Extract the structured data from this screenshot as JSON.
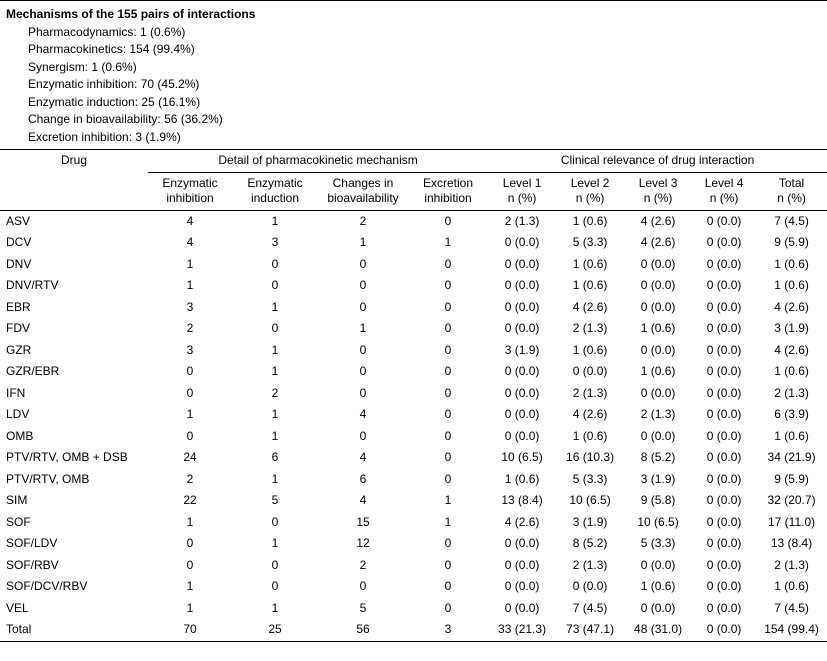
{
  "summary": {
    "title": "Mechanisms of the 155 pairs of interactions",
    "items": [
      "Pharmacodynamics: 1 (0.6%)",
      "Pharmacokinetics: 154 (99.4%)",
      "Synergism: 1 (0.6%)",
      "Enzymatic inhibition: 70 (45.2%)",
      "Enzymatic induction: 25 (16.1%)",
      "Change in bioavailability: 56 (36.2%)",
      "Excretion inhibition: 3 (1.9%)"
    ]
  },
  "table": {
    "drug_header": "Drug",
    "group_headers": {
      "mechanism": "Detail of pharmacokinetic mechanism",
      "clinical": "Clinical relevance of drug interaction"
    },
    "columns": [
      "Enzymatic\ninhibition",
      "Enzymatic\ninduction",
      "Changes in\nbioavailability",
      "Excretion\ninhibition",
      "Level 1\nn (%)",
      "Level 2\nn (%)",
      "Level 3\nn (%)",
      "Level 4\nn (%)",
      "Total\nn (%)"
    ],
    "rows": [
      {
        "drug": "ASV",
        "cells": [
          "4",
          "1",
          "2",
          "0",
          "2 (1.3)",
          "1 (0.6)",
          "4 (2.6)",
          "0 (0.0)",
          "7 (4.5)"
        ]
      },
      {
        "drug": "DCV",
        "cells": [
          "4",
          "3",
          "1",
          "1",
          "0 (0.0)",
          "5 (3.3)",
          "4 (2.6)",
          "0 (0.0)",
          "9 (5.9)"
        ]
      },
      {
        "drug": "DNV",
        "cells": [
          "1",
          "0",
          "0",
          "0",
          "0 (0.0)",
          "1 (0.6)",
          "0 (0.0)",
          "0 (0.0)",
          "1 (0.6)"
        ]
      },
      {
        "drug": "DNV/RTV",
        "cells": [
          "1",
          "0",
          "0",
          "0",
          "0 (0.0)",
          "1 (0.6)",
          "0 (0.0)",
          "0 (0.0)",
          "1 (0.6)"
        ]
      },
      {
        "drug": "EBR",
        "cells": [
          "3",
          "1",
          "0",
          "0",
          "0 (0.0)",
          "4 (2.6)",
          "0 (0.0)",
          "0 (0.0)",
          "4 (2.6)"
        ]
      },
      {
        "drug": "FDV",
        "cells": [
          "2",
          "0",
          "1",
          "0",
          "0 (0.0)",
          "2 (1.3)",
          "1 (0.6)",
          "0 (0.0)",
          "3 (1.9)"
        ]
      },
      {
        "drug": "GZR",
        "cells": [
          "3",
          "1",
          "0",
          "0",
          "3 (1.9)",
          "1 (0.6)",
          "0 (0.0)",
          "0 (0.0)",
          "4 (2.6)"
        ]
      },
      {
        "drug": "GZR/EBR",
        "cells": [
          "0",
          "1",
          "0",
          "0",
          "0 (0.0)",
          "0 (0.0)",
          "1 (0.6)",
          "0 (0.0)",
          "1 (0.6)"
        ]
      },
      {
        "drug": "IFN",
        "cells": [
          "0",
          "2",
          "0",
          "0",
          "0 (0.0)",
          "2 (1.3)",
          "0 (0.0)",
          "0 (0.0)",
          "2 (1.3)"
        ]
      },
      {
        "drug": "LDV",
        "cells": [
          "1",
          "1",
          "4",
          "0",
          "0 (0.0)",
          "4 (2.6)",
          "2 (1.3)",
          "0 (0.0)",
          "6 (3.9)"
        ]
      },
      {
        "drug": "OMB",
        "cells": [
          "0",
          "1",
          "0",
          "0",
          "0 (0.0)",
          "1 (0.6)",
          "0 (0.0)",
          "0 (0.0)",
          "1 (0.6)"
        ]
      },
      {
        "drug": "PTV/RTV, OMB + DSB",
        "cells": [
          "24",
          "6",
          "4",
          "0",
          "10 (6.5)",
          "16 (10.3)",
          "8 (5.2)",
          "0 (0.0)",
          "34 (21.9)"
        ]
      },
      {
        "drug": "PTV/RTV, OMB",
        "cells": [
          "2",
          "1",
          "6",
          "0",
          "1 (0.6)",
          "5 (3.3)",
          "3 (1.9)",
          "0 (0.0)",
          "9 (5.9)"
        ]
      },
      {
        "drug": "SIM",
        "cells": [
          "22",
          "5",
          "4",
          "1",
          "13 (8.4)",
          "10 (6.5)",
          "9 (5.8)",
          "0 (0.0)",
          "32 (20.7)"
        ]
      },
      {
        "drug": "SOF",
        "cells": [
          "1",
          "0",
          "15",
          "1",
          "4 (2.6)",
          "3 (1.9)",
          "10 (6.5)",
          "0 (0.0)",
          "17 (11.0)"
        ]
      },
      {
        "drug": "SOF/LDV",
        "cells": [
          "0",
          "1",
          "12",
          "0",
          "0 (0.0)",
          "8 (5.2)",
          "5 (3.3)",
          "0 (0.0)",
          "13 (8.4)"
        ]
      },
      {
        "drug": "SOF/RBV",
        "cells": [
          "0",
          "0",
          "2",
          "0",
          "0 (0.0)",
          "2 (1.3)",
          "0 (0.0)",
          "0 (0.0)",
          "2 (1.3)"
        ]
      },
      {
        "drug": "SOF/DCV/RBV",
        "cells": [
          "1",
          "0",
          "0",
          "0",
          "0 (0.0)",
          "0 (0.0)",
          "1 (0.6)",
          "0 (0.0)",
          "1 (0.6)"
        ]
      },
      {
        "drug": "VEL",
        "cells": [
          "1",
          "1",
          "5",
          "0",
          "0 (0.0)",
          "7 (4.5)",
          "0 (0.0)",
          "0 (0.0)",
          "7 (4.5)"
        ]
      },
      {
        "drug": "Total",
        "cells": [
          "70",
          "25",
          "56",
          "3",
          "33 (21.3)",
          "73 (47.1)",
          "48 (31.0)",
          "0 (0.0)",
          "154 (99.4)"
        ]
      }
    ]
  }
}
